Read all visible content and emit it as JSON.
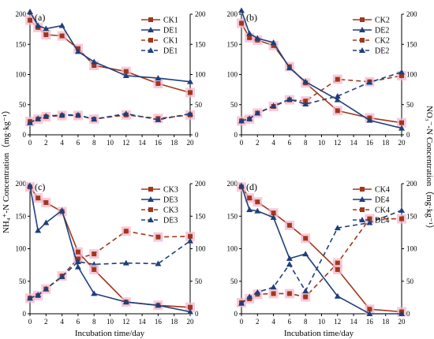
{
  "figure": {
    "x_label": "Incubation time/day",
    "y_left_label": "NH₄⁺-N  Concentration（mg·kg⁻¹）",
    "y_right_label": "NO₃⁻-N  Concentration（mg·kg⁻¹）"
  },
  "colors": {
    "ck": "#a0371c",
    "de": "#1f3f7a",
    "ck_marker_bg": "#f4b8cd"
  },
  "chart_data": [
    {
      "type": "line",
      "panel": "(a)",
      "x": [
        0,
        1,
        2,
        4,
        6,
        8,
        12,
        16,
        20
      ],
      "xlim": [
        0,
        20
      ],
      "ylim": [
        0,
        200
      ],
      "x_ticks": [
        0,
        2,
        4,
        6,
        8,
        10,
        12,
        14,
        16,
        18,
        20
      ],
      "y_ticks": [
        0,
        50,
        100,
        150,
        200
      ],
      "series": [
        {
          "name": "CK1",
          "kind": "NH4",
          "marker": "square",
          "dashed": false,
          "values": [
            190,
            178,
            166,
            164,
            143,
            115,
            105,
            85,
            70
          ]
        },
        {
          "name": "DE1",
          "kind": "NH4",
          "marker": "triangle",
          "dashed": false,
          "values": [
            204,
            181,
            176,
            181,
            138,
            121,
            98,
            94,
            88
          ]
        },
        {
          "name": "CK1",
          "kind": "NO3",
          "marker": "square",
          "dashed": true,
          "values": [
            22,
            26,
            30,
            32,
            32,
            26,
            33,
            27,
            33
          ]
        },
        {
          "name": "DE1",
          "kind": "NO3",
          "marker": "triangle",
          "dashed": true,
          "values": [
            20,
            27,
            31,
            33,
            33,
            26,
            35,
            25,
            35
          ]
        }
      ]
    },
    {
      "type": "line",
      "panel": "(b)",
      "x": [
        0,
        1,
        2,
        4,
        6,
        8,
        12,
        16,
        20
      ],
      "xlim": [
        0,
        20
      ],
      "ylim": [
        0,
        200
      ],
      "x_ticks": [
        0,
        2,
        4,
        6,
        8,
        10,
        12,
        14,
        16,
        18,
        20
      ],
      "y_ticks": [
        0,
        50,
        100,
        150,
        200
      ],
      "series": [
        {
          "name": "CK2",
          "kind": "NH4",
          "marker": "square",
          "dashed": false,
          "values": [
            185,
            161,
            157,
            148,
            113,
            86,
            40,
            28,
            20
          ]
        },
        {
          "name": "DE2",
          "kind": "NH4",
          "marker": "triangle",
          "dashed": false,
          "values": [
            206,
            168,
            160,
            153,
            111,
            88,
            58,
            24,
            11
          ]
        },
        {
          "name": "CK2",
          "kind": "NO3",
          "marker": "square",
          "dashed": true,
          "values": [
            23,
            26,
            36,
            47,
            58,
            56,
            92,
            88,
            98
          ]
        },
        {
          "name": "DE2",
          "kind": "NO3",
          "marker": "triangle",
          "dashed": true,
          "values": [
            23,
            27,
            36,
            48,
            59,
            51,
            64,
            87,
            104
          ]
        }
      ]
    },
    {
      "type": "line",
      "panel": "(c)",
      "x": [
        0,
        1,
        2,
        4,
        6,
        8,
        12,
        16,
        20
      ],
      "xlim": [
        0,
        20
      ],
      "ylim": [
        0,
        200
      ],
      "x_ticks": [
        0,
        2,
        4,
        6,
        8,
        10,
        12,
        14,
        16,
        18,
        20
      ],
      "y_ticks": [
        0,
        50,
        100,
        150,
        200
      ],
      "series": [
        {
          "name": "CK3",
          "kind": "NH4",
          "marker": "square",
          "dashed": false,
          "values": [
            195,
            178,
            171,
            157,
            95,
            68,
            18,
            13,
            10
          ]
        },
        {
          "name": "DE3",
          "kind": "NH4",
          "marker": "triangle",
          "dashed": false,
          "values": [
            197,
            128,
            140,
            159,
            72,
            31,
            18,
            13,
            3
          ]
        },
        {
          "name": "CK3",
          "kind": "NO3",
          "marker": "square",
          "dashed": true,
          "values": [
            24,
            28,
            38,
            58,
            85,
            92,
            127,
            118,
            119
          ]
        },
        {
          "name": "DE3",
          "kind": "NO3",
          "marker": "triangle",
          "dashed": true,
          "values": [
            24,
            29,
            38,
            57,
            80,
            76,
            78,
            77,
            112
          ]
        }
      ]
    },
    {
      "type": "line",
      "panel": "(d)",
      "x": [
        0,
        1,
        2,
        4,
        6,
        8,
        12,
        16,
        20
      ],
      "xlim": [
        0,
        20
      ],
      "ylim": [
        0,
        200
      ],
      "x_ticks": [
        0,
        2,
        4,
        6,
        8,
        10,
        12,
        14,
        16,
        18,
        20
      ],
      "y_ticks": [
        0,
        50,
        100,
        150,
        200
      ],
      "series": [
        {
          "name": "CK4",
          "kind": "NH4",
          "marker": "square",
          "dashed": false,
          "values": [
            195,
            178,
            172,
            155,
            136,
            116,
            68,
            7,
            3
          ]
        },
        {
          "name": "DE4",
          "kind": "NH4",
          "marker": "triangle",
          "dashed": false,
          "values": [
            197,
            160,
            158,
            148,
            85,
            92,
            27,
            0,
            0
          ]
        },
        {
          "name": "CK4",
          "kind": "NO3",
          "marker": "square",
          "dashed": true,
          "values": [
            17,
            23,
            30,
            31,
            31,
            26,
            78,
            146,
            146
          ]
        },
        {
          "name": "DE4",
          "kind": "NO3",
          "marker": "triangle",
          "dashed": true,
          "values": [
            16,
            26,
            33,
            41,
            76,
            35,
            132,
            140,
            159
          ]
        }
      ]
    }
  ]
}
